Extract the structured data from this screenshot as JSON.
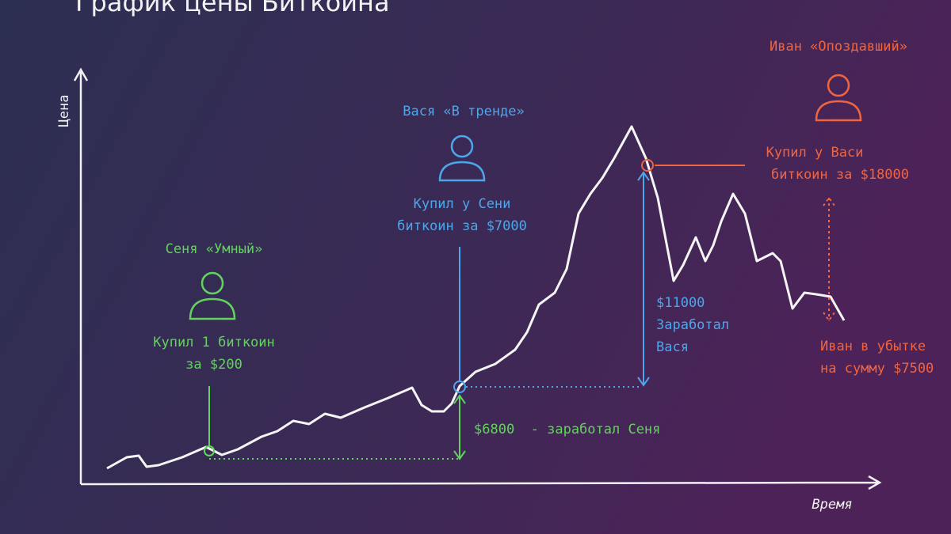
{
  "header": {
    "title": "График цены Биткоина"
  },
  "axes": {
    "y_label": "Цена",
    "x_label": "Время"
  },
  "people": [
    {
      "name": "Сеня «Умный»",
      "lines": [
        "Купил 1 биткоин",
        "за $200"
      ]
    },
    {
      "name": "Вася «В тренде»",
      "lines": [
        "Купил у Сени",
        "биткоин за $7000"
      ]
    },
    {
      "name": "Иван «Опоздавший»",
      "lines": [
        "Купил у Васи",
        "биткоин за $18000"
      ]
    }
  ],
  "annotations": {
    "senya_profit": "$6800  - заработал Сеня",
    "vasya_profit": [
      "$11000",
      "Заработал",
      "Вася"
    ],
    "ivan_loss": [
      "Иван в убытке",
      "на сумму $7500"
    ]
  }
}
